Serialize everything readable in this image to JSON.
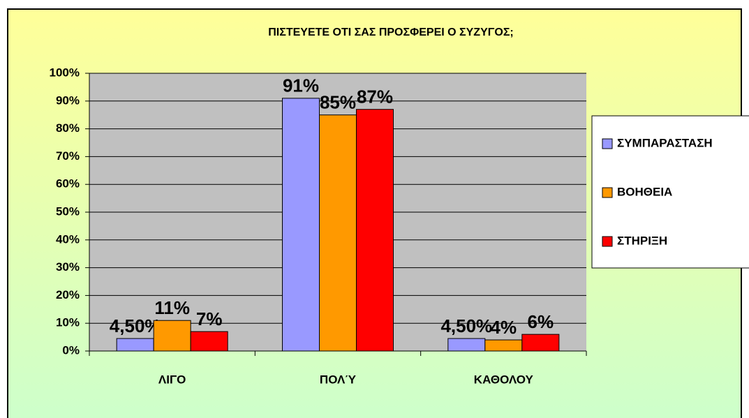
{
  "chart_data": {
    "type": "bar",
    "title": "ΠΙΣΤΕΥΕΤΕ ΟΤΙ ΣΑΣ ΠΡΟΣΦΕΡΕΙ Ο ΣΥΖΥΓΟΣ;",
    "categories": [
      "ΛΙΓΟ",
      "ΠΟΛΎ",
      "ΚΑΘΟΛΟΥ"
    ],
    "series": [
      {
        "name": "ΣΥΜΠΑΡΑΣΤΑΣΗ",
        "color": "#9999ff",
        "values": [
          4.5,
          91,
          4.5
        ],
        "value_labels": [
          "4,50%",
          "91%",
          "4,50%"
        ]
      },
      {
        "name": "ΒΟΗΘΕΙΑ",
        "color": "#ff9900",
        "values": [
          11,
          85,
          4
        ],
        "value_labels": [
          "11%",
          "85%",
          "4%"
        ]
      },
      {
        "name": "ΣΤΗΡΙΞΗ",
        "color": "#ff0000",
        "values": [
          7,
          87,
          6
        ],
        "value_labels": [
          "7%",
          "87%",
          "6%"
        ]
      }
    ],
    "ylim": [
      0,
      100
    ],
    "yticks": [
      {
        "value": 0,
        "label": "0%"
      },
      {
        "value": 10,
        "label": "10%"
      },
      {
        "value": 20,
        "label": "20%"
      },
      {
        "value": 30,
        "label": "30%"
      },
      {
        "value": 40,
        "label": "40%"
      },
      {
        "value": 50,
        "label": "50%"
      },
      {
        "value": 60,
        "label": "60%"
      },
      {
        "value": 70,
        "label": "70%"
      },
      {
        "value": 80,
        "label": "80%"
      },
      {
        "value": 90,
        "label": "90%"
      },
      {
        "value": 100,
        "label": "100%"
      }
    ],
    "grid": true,
    "legend": "right"
  }
}
